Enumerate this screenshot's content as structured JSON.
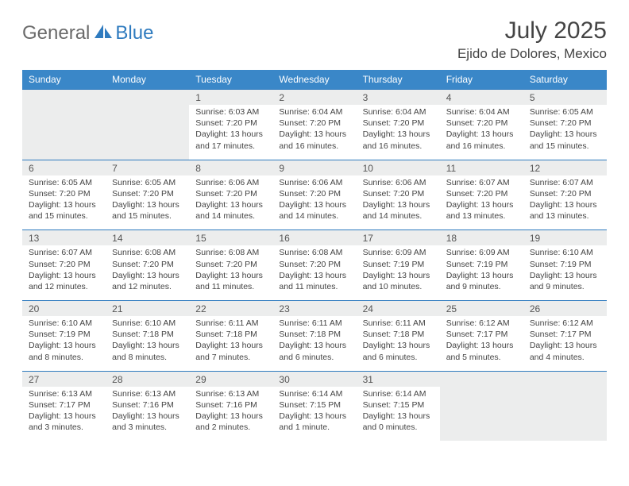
{
  "logo": {
    "general": "General",
    "blue": "Blue"
  },
  "title": "July 2025",
  "location": "Ejido de Dolores, Mexico",
  "colors": {
    "header_bg": "#3a87c8",
    "header_text": "#ffffff",
    "border": "#2f7bbf",
    "daynum_bg": "#eceded",
    "cell_bg": "#ffffff",
    "text": "#444444"
  },
  "day_headers": [
    "Sunday",
    "Monday",
    "Tuesday",
    "Wednesday",
    "Thursday",
    "Friday",
    "Saturday"
  ],
  "weeks": [
    {
      "nums": [
        "",
        "",
        "1",
        "2",
        "3",
        "4",
        "5"
      ],
      "cells": [
        null,
        null,
        {
          "sunrise": "6:03 AM",
          "sunset": "7:20 PM",
          "daylight": "13 hours and 17 minutes."
        },
        {
          "sunrise": "6:04 AM",
          "sunset": "7:20 PM",
          "daylight": "13 hours and 16 minutes."
        },
        {
          "sunrise": "6:04 AM",
          "sunset": "7:20 PM",
          "daylight": "13 hours and 16 minutes."
        },
        {
          "sunrise": "6:04 AM",
          "sunset": "7:20 PM",
          "daylight": "13 hours and 16 minutes."
        },
        {
          "sunrise": "6:05 AM",
          "sunset": "7:20 PM",
          "daylight": "13 hours and 15 minutes."
        }
      ]
    },
    {
      "nums": [
        "6",
        "7",
        "8",
        "9",
        "10",
        "11",
        "12"
      ],
      "cells": [
        {
          "sunrise": "6:05 AM",
          "sunset": "7:20 PM",
          "daylight": "13 hours and 15 minutes."
        },
        {
          "sunrise": "6:05 AM",
          "sunset": "7:20 PM",
          "daylight": "13 hours and 15 minutes."
        },
        {
          "sunrise": "6:06 AM",
          "sunset": "7:20 PM",
          "daylight": "13 hours and 14 minutes."
        },
        {
          "sunrise": "6:06 AM",
          "sunset": "7:20 PM",
          "daylight": "13 hours and 14 minutes."
        },
        {
          "sunrise": "6:06 AM",
          "sunset": "7:20 PM",
          "daylight": "13 hours and 14 minutes."
        },
        {
          "sunrise": "6:07 AM",
          "sunset": "7:20 PM",
          "daylight": "13 hours and 13 minutes."
        },
        {
          "sunrise": "6:07 AM",
          "sunset": "7:20 PM",
          "daylight": "13 hours and 13 minutes."
        }
      ]
    },
    {
      "nums": [
        "13",
        "14",
        "15",
        "16",
        "17",
        "18",
        "19"
      ],
      "cells": [
        {
          "sunrise": "6:07 AM",
          "sunset": "7:20 PM",
          "daylight": "13 hours and 12 minutes."
        },
        {
          "sunrise": "6:08 AM",
          "sunset": "7:20 PM",
          "daylight": "13 hours and 12 minutes."
        },
        {
          "sunrise": "6:08 AM",
          "sunset": "7:20 PM",
          "daylight": "13 hours and 11 minutes."
        },
        {
          "sunrise": "6:08 AM",
          "sunset": "7:20 PM",
          "daylight": "13 hours and 11 minutes."
        },
        {
          "sunrise": "6:09 AM",
          "sunset": "7:19 PM",
          "daylight": "13 hours and 10 minutes."
        },
        {
          "sunrise": "6:09 AM",
          "sunset": "7:19 PM",
          "daylight": "13 hours and 9 minutes."
        },
        {
          "sunrise": "6:10 AM",
          "sunset": "7:19 PM",
          "daylight": "13 hours and 9 minutes."
        }
      ]
    },
    {
      "nums": [
        "20",
        "21",
        "22",
        "23",
        "24",
        "25",
        "26"
      ],
      "cells": [
        {
          "sunrise": "6:10 AM",
          "sunset": "7:19 PM",
          "daylight": "13 hours and 8 minutes."
        },
        {
          "sunrise": "6:10 AM",
          "sunset": "7:18 PM",
          "daylight": "13 hours and 8 minutes."
        },
        {
          "sunrise": "6:11 AM",
          "sunset": "7:18 PM",
          "daylight": "13 hours and 7 minutes."
        },
        {
          "sunrise": "6:11 AM",
          "sunset": "7:18 PM",
          "daylight": "13 hours and 6 minutes."
        },
        {
          "sunrise": "6:11 AM",
          "sunset": "7:18 PM",
          "daylight": "13 hours and 6 minutes."
        },
        {
          "sunrise": "6:12 AM",
          "sunset": "7:17 PM",
          "daylight": "13 hours and 5 minutes."
        },
        {
          "sunrise": "6:12 AM",
          "sunset": "7:17 PM",
          "daylight": "13 hours and 4 minutes."
        }
      ]
    },
    {
      "nums": [
        "27",
        "28",
        "29",
        "30",
        "31",
        "",
        ""
      ],
      "cells": [
        {
          "sunrise": "6:13 AM",
          "sunset": "7:17 PM",
          "daylight": "13 hours and 3 minutes."
        },
        {
          "sunrise": "6:13 AM",
          "sunset": "7:16 PM",
          "daylight": "13 hours and 3 minutes."
        },
        {
          "sunrise": "6:13 AM",
          "sunset": "7:16 PM",
          "daylight": "13 hours and 2 minutes."
        },
        {
          "sunrise": "6:14 AM",
          "sunset": "7:15 PM",
          "daylight": "13 hours and 1 minute."
        },
        {
          "sunrise": "6:14 AM",
          "sunset": "7:15 PM",
          "daylight": "13 hours and 0 minutes."
        },
        null,
        null
      ]
    }
  ]
}
